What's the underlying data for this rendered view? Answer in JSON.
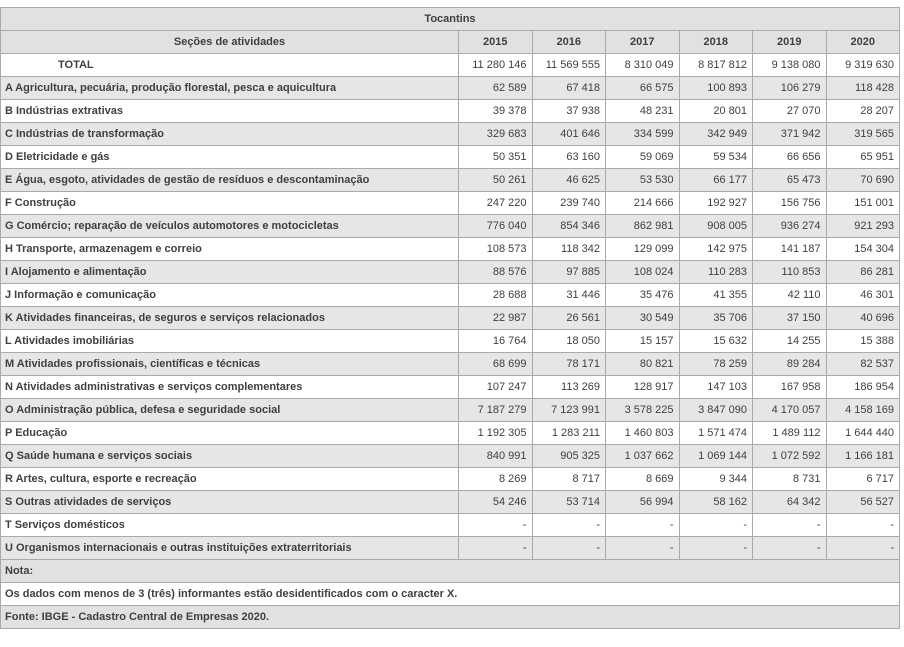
{
  "table": {
    "region_title": "Tocantins",
    "header": {
      "label_column": "Seções de atividades",
      "years": [
        "2015",
        "2016",
        "2017",
        "2018",
        "2019",
        "2020"
      ]
    },
    "rows": [
      {
        "label": "TOTAL",
        "indent": true,
        "values": [
          "11 280 146",
          "11 569 555",
          "8 310 049",
          "8 817 812",
          "9 138 080",
          "9 319 630"
        ]
      },
      {
        "label": "A Agricultura, pecuária, produção florestal, pesca e aquicultura",
        "values": [
          "62 589",
          "67 418",
          "66 575",
          "100 893",
          "106 279",
          "118 428"
        ]
      },
      {
        "label": "B Indústrias extrativas",
        "values": [
          "39 378",
          "37 938",
          "48 231",
          "20 801",
          "27 070",
          "28 207"
        ]
      },
      {
        "label": "C Indústrias de transformação",
        "values": [
          "329 683",
          "401 646",
          "334 599",
          "342 949",
          "371 942",
          "319 565"
        ]
      },
      {
        "label": "D Eletricidade e gás",
        "values": [
          "50 351",
          "63 160",
          "59 069",
          "59 534",
          "66 656",
          "65 951"
        ]
      },
      {
        "label": "E Água, esgoto, atividades de gestão de resíduos e descontaminação",
        "values": [
          "50 261",
          "46 625",
          "53 530",
          "66 177",
          "65 473",
          "70 690"
        ]
      },
      {
        "label": "F Construção",
        "values": [
          "247 220",
          "239 740",
          "214 666",
          "192 927",
          "156 756",
          "151 001"
        ]
      },
      {
        "label": "G Comércio; reparação de veículos automotores e motocicletas",
        "values": [
          "776 040",
          "854 346",
          "862 981",
          "908 005",
          "936 274",
          "921 293"
        ]
      },
      {
        "label": "H Transporte, armazenagem e correio",
        "values": [
          "108 573",
          "118 342",
          "129 099",
          "142 975",
          "141 187",
          "154 304"
        ]
      },
      {
        "label": "I Alojamento e alimentação",
        "values": [
          "88 576",
          "97 885",
          "108 024",
          "110 283",
          "110 853",
          "86 281"
        ]
      },
      {
        "label": "J Informação e comunicação",
        "values": [
          "28 688",
          "31 446",
          "35 476",
          "41 355",
          "42 110",
          "46 301"
        ]
      },
      {
        "label": "K Atividades financeiras, de seguros e serviços relacionados",
        "values": [
          "22 987",
          "26 561",
          "30 549",
          "35 706",
          "37 150",
          "40 696"
        ]
      },
      {
        "label": "L Atividades imobiliárias",
        "values": [
          "16 764",
          "18 050",
          "15 157",
          "15 632",
          "14 255",
          "15 388"
        ]
      },
      {
        "label": "M Atividades profissionais, científicas e técnicas",
        "values": [
          "68 699",
          "78 171",
          "80 821",
          "78 259",
          "89 284",
          "82 537"
        ]
      },
      {
        "label": "N Atividades administrativas e serviços complementares",
        "values": [
          "107 247",
          "113 269",
          "128 917",
          "147 103",
          "167 958",
          "186 954"
        ]
      },
      {
        "label": "O Administração pública, defesa e seguridade social",
        "values": [
          "7 187 279",
          "7 123 991",
          "3 578 225",
          "3 847 090",
          "4 170 057",
          "4 158 169"
        ]
      },
      {
        "label": "P Educação",
        "values": [
          "1 192 305",
          "1 283 211",
          "1 460 803",
          "1 571 474",
          "1 489 112",
          "1 644 440"
        ]
      },
      {
        "label": "Q Saúde humana e serviços sociais",
        "values": [
          "840 991",
          "905 325",
          "1 037 662",
          "1 069 144",
          "1 072 592",
          "1 166 181"
        ]
      },
      {
        "label": "R Artes, cultura, esporte e recreação",
        "values": [
          "8 269",
          "8 717",
          "8 669",
          "9 344",
          "8 731",
          "6 717"
        ]
      },
      {
        "label": "S Outras atividades de serviços",
        "values": [
          "54 246",
          "53 714",
          "56 994",
          "58 162",
          "64 342",
          "56 527"
        ]
      },
      {
        "label": "T Serviços domésticos",
        "values": [
          "-",
          "-",
          "-",
          "-",
          "-",
          "-"
        ]
      },
      {
        "label": "U Organismos internacionais e outras instituições extraterritoriais",
        "values": [
          "-",
          "-",
          "-",
          "-",
          "-",
          "-"
        ]
      }
    ],
    "footer": {
      "nota_label": "Nota:",
      "nota_text": "Os dados com menos de 3 (três) informantes estão desidentificados com o caracter X.",
      "fonte_text": "Fonte: IBGE - Cadastro Central de Empresas 2020."
    },
    "colors": {
      "header_bg": "#e1e1e1",
      "alt_row_bg": "#e6e6e6",
      "border": "#aaaaaa",
      "text": "#3f3f3f"
    }
  },
  "chart_data": {
    "type": "table",
    "title": "Tocantins",
    "row_header": "Seções de atividades",
    "categories": [
      2015,
      2016,
      2017,
      2018,
      2019,
      2020
    ],
    "series": [
      {
        "name": "TOTAL",
        "values": [
          11280146,
          11569555,
          8310049,
          8817812,
          9138080,
          9319630
        ]
      },
      {
        "name": "A Agricultura, pecuária, produção florestal, pesca e aquicultura",
        "values": [
          62589,
          67418,
          66575,
          100893,
          106279,
          118428
        ]
      },
      {
        "name": "B Indústrias extrativas",
        "values": [
          39378,
          37938,
          48231,
          20801,
          27070,
          28207
        ]
      },
      {
        "name": "C Indústrias de transformação",
        "values": [
          329683,
          401646,
          334599,
          342949,
          371942,
          319565
        ]
      },
      {
        "name": "D Eletricidade e gás",
        "values": [
          50351,
          63160,
          59069,
          59534,
          66656,
          65951
        ]
      },
      {
        "name": "E Água, esgoto, atividades de gestão de resíduos e descontaminação",
        "values": [
          50261,
          46625,
          53530,
          66177,
          65473,
          70690
        ]
      },
      {
        "name": "F Construção",
        "values": [
          247220,
          239740,
          214666,
          192927,
          156756,
          151001
        ]
      },
      {
        "name": "G Comércio; reparação de veículos automotores e motocicletas",
        "values": [
          776040,
          854346,
          862981,
          908005,
          936274,
          921293
        ]
      },
      {
        "name": "H Transporte, armazenagem e correio",
        "values": [
          108573,
          118342,
          129099,
          142975,
          141187,
          154304
        ]
      },
      {
        "name": "I Alojamento e alimentação",
        "values": [
          88576,
          97885,
          108024,
          110283,
          110853,
          86281
        ]
      },
      {
        "name": "J Informação e comunicação",
        "values": [
          28688,
          31446,
          35476,
          41355,
          42110,
          46301
        ]
      },
      {
        "name": "K Atividades financeiras, de seguros e serviços relacionados",
        "values": [
          22987,
          26561,
          30549,
          35706,
          37150,
          40696
        ]
      },
      {
        "name": "L Atividades imobiliárias",
        "values": [
          16764,
          18050,
          15157,
          15632,
          14255,
          15388
        ]
      },
      {
        "name": "M Atividades profissionais, científicas e técnicas",
        "values": [
          68699,
          78171,
          80821,
          78259,
          89284,
          82537
        ]
      },
      {
        "name": "N Atividades administrativas e serviços complementares",
        "values": [
          107247,
          113269,
          128917,
          147103,
          167958,
          186954
        ]
      },
      {
        "name": "O Administração pública, defesa e seguridade social",
        "values": [
          7187279,
          7123991,
          3578225,
          3847090,
          4170057,
          4158169
        ]
      },
      {
        "name": "P Educação",
        "values": [
          1192305,
          1283211,
          1460803,
          1571474,
          1489112,
          1644440
        ]
      },
      {
        "name": "Q Saúde humana e serviços sociais",
        "values": [
          840991,
          905325,
          1037662,
          1069144,
          1072592,
          1166181
        ]
      },
      {
        "name": "R Artes, cultura, esporte e recreação",
        "values": [
          8269,
          8717,
          8669,
          9344,
          8731,
          6717
        ]
      },
      {
        "name": "S Outras atividades de serviços",
        "values": [
          54246,
          53714,
          56994,
          58162,
          64342,
          56527
        ]
      },
      {
        "name": "T Serviços domésticos",
        "values": [
          null,
          null,
          null,
          null,
          null,
          null
        ]
      },
      {
        "name": "U Organismos internacionais e outras instituições extraterritoriais",
        "values": [
          null,
          null,
          null,
          null,
          null,
          null
        ]
      }
    ],
    "note": "Os dados com menos de 3 (três) informantes estão desidentificados com o caracter X.",
    "source": "Fonte: IBGE - Cadastro Central de Empresas 2020."
  }
}
